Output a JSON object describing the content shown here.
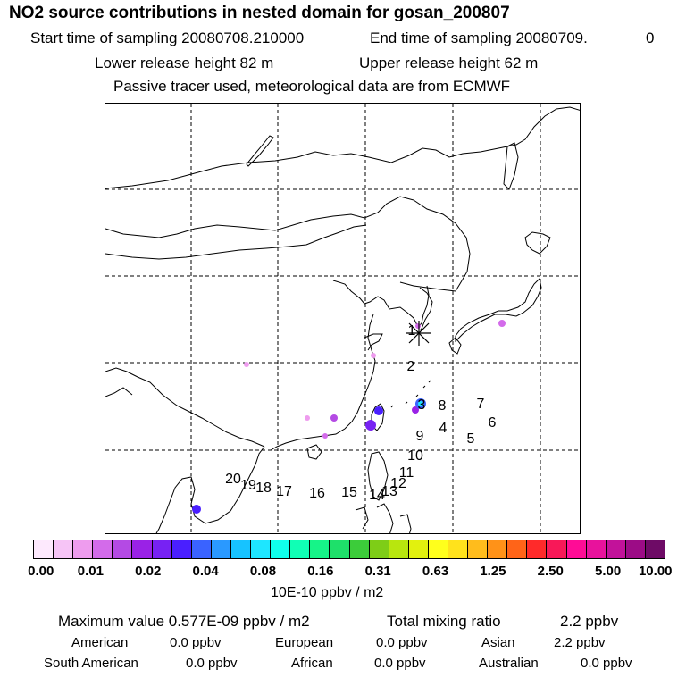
{
  "header": {
    "title": "NO2 source contributions in nested domain for gosan_200807",
    "start_label": "Start time of sampling 20080708.210000",
    "end_label": "End time of sampling 20080709.",
    "end_hour": "0",
    "lower_height": "Lower release height   82 m",
    "upper_height": "Upper release height   62 m",
    "tracer_note": "Passive tracer used, meteorological data are from ECMWF"
  },
  "map": {
    "receptor_marker_label": "1",
    "trajectory_labels": [
      "1",
      "2",
      "3",
      "4",
      "5",
      "6",
      "7",
      "8",
      "9",
      "10",
      "11",
      "12",
      "13",
      "14",
      "15",
      "16",
      "17",
      "18",
      "19",
      "20"
    ]
  },
  "colorbar": {
    "colors": [
      "#fde9fd",
      "#f6c4f6",
      "#ee9cee",
      "#d36bea",
      "#b44ae4",
      "#9a22e6",
      "#7722f3",
      "#4a1fff",
      "#3a63ff",
      "#2a99ff",
      "#17c3ff",
      "#1ee6ff",
      "#10ffec",
      "#10ffb5",
      "#16f488",
      "#1ee06a",
      "#3ccc3a",
      "#7ecd17",
      "#b8e60e",
      "#e2f10e",
      "#ffff1c",
      "#ffe21c",
      "#ffbc1c",
      "#ff9218",
      "#ff6418",
      "#ff2a2a",
      "#f81858",
      "#ff0c96",
      "#e8129c",
      "#c2129a",
      "#9c0c86",
      "#6e0b66"
    ],
    "tick_labels": [
      "0.00",
      "0.01",
      "0.02",
      "0.04",
      "0.08",
      "0.16",
      "0.31",
      "0.63",
      "1.25",
      "2.50",
      "5.00",
      "10.00"
    ],
    "units": "10E-10 ppbv / m2"
  },
  "stats": {
    "max_value": "Maximum value  0.577E-09 ppbv / m2",
    "total_label": "Total mixing ratio",
    "total_value": "2.2 ppbv",
    "american_label": "American",
    "american_value": "0.0 ppbv",
    "european_label": "European",
    "european_value": "0.0 ppbv",
    "asian_label": "Asian",
    "asian_value": "2.2 ppbv",
    "south_american_label": "South American",
    "south_american_value": "0.0 ppbv",
    "african_label": "African",
    "african_value": "0.0 ppbv",
    "australian_label": "Australian",
    "australian_value": "0.0 ppbv"
  }
}
